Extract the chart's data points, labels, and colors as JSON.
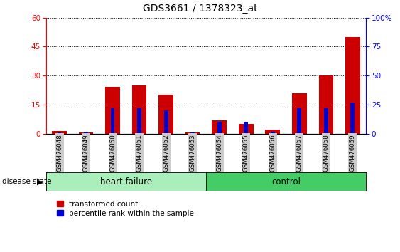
{
  "title": "GDS3661 / 1378323_at",
  "samples": [
    "GSM476048",
    "GSM476049",
    "GSM476050",
    "GSM476051",
    "GSM476052",
    "GSM476053",
    "GSM476054",
    "GSM476055",
    "GSM476056",
    "GSM476057",
    "GSM476058",
    "GSM476059"
  ],
  "red_values": [
    1.2,
    0.6,
    24.0,
    25.0,
    20.0,
    0.6,
    7.0,
    5.0,
    2.0,
    21.0,
    30.0,
    50.0
  ],
  "blue_values": [
    0.5,
    1.0,
    13.0,
    13.0,
    12.0,
    0.5,
    6.0,
    6.0,
    1.0,
    13.0,
    13.0,
    16.0
  ],
  "ylim_left": [
    0,
    60
  ],
  "ylim_right": [
    0,
    100
  ],
  "yticks_left": [
    0,
    15,
    30,
    45,
    60
  ],
  "yticks_right": [
    0,
    25,
    50,
    75,
    100
  ],
  "ytick_labels_right": [
    "0",
    "25",
    "50",
    "75",
    "100%"
  ],
  "bar_width": 0.55,
  "red_color": "#CC0000",
  "blue_color": "#0000CC",
  "heart_failure_color": "#AAEEBB",
  "control_color": "#44CC66",
  "tick_bg_color": "#CCCCCC",
  "legend_red": "transformed count",
  "legend_blue": "percentile rank within the sample",
  "disease_state_label": "disease state",
  "heart_failure_label": "heart failure",
  "control_label": "control"
}
